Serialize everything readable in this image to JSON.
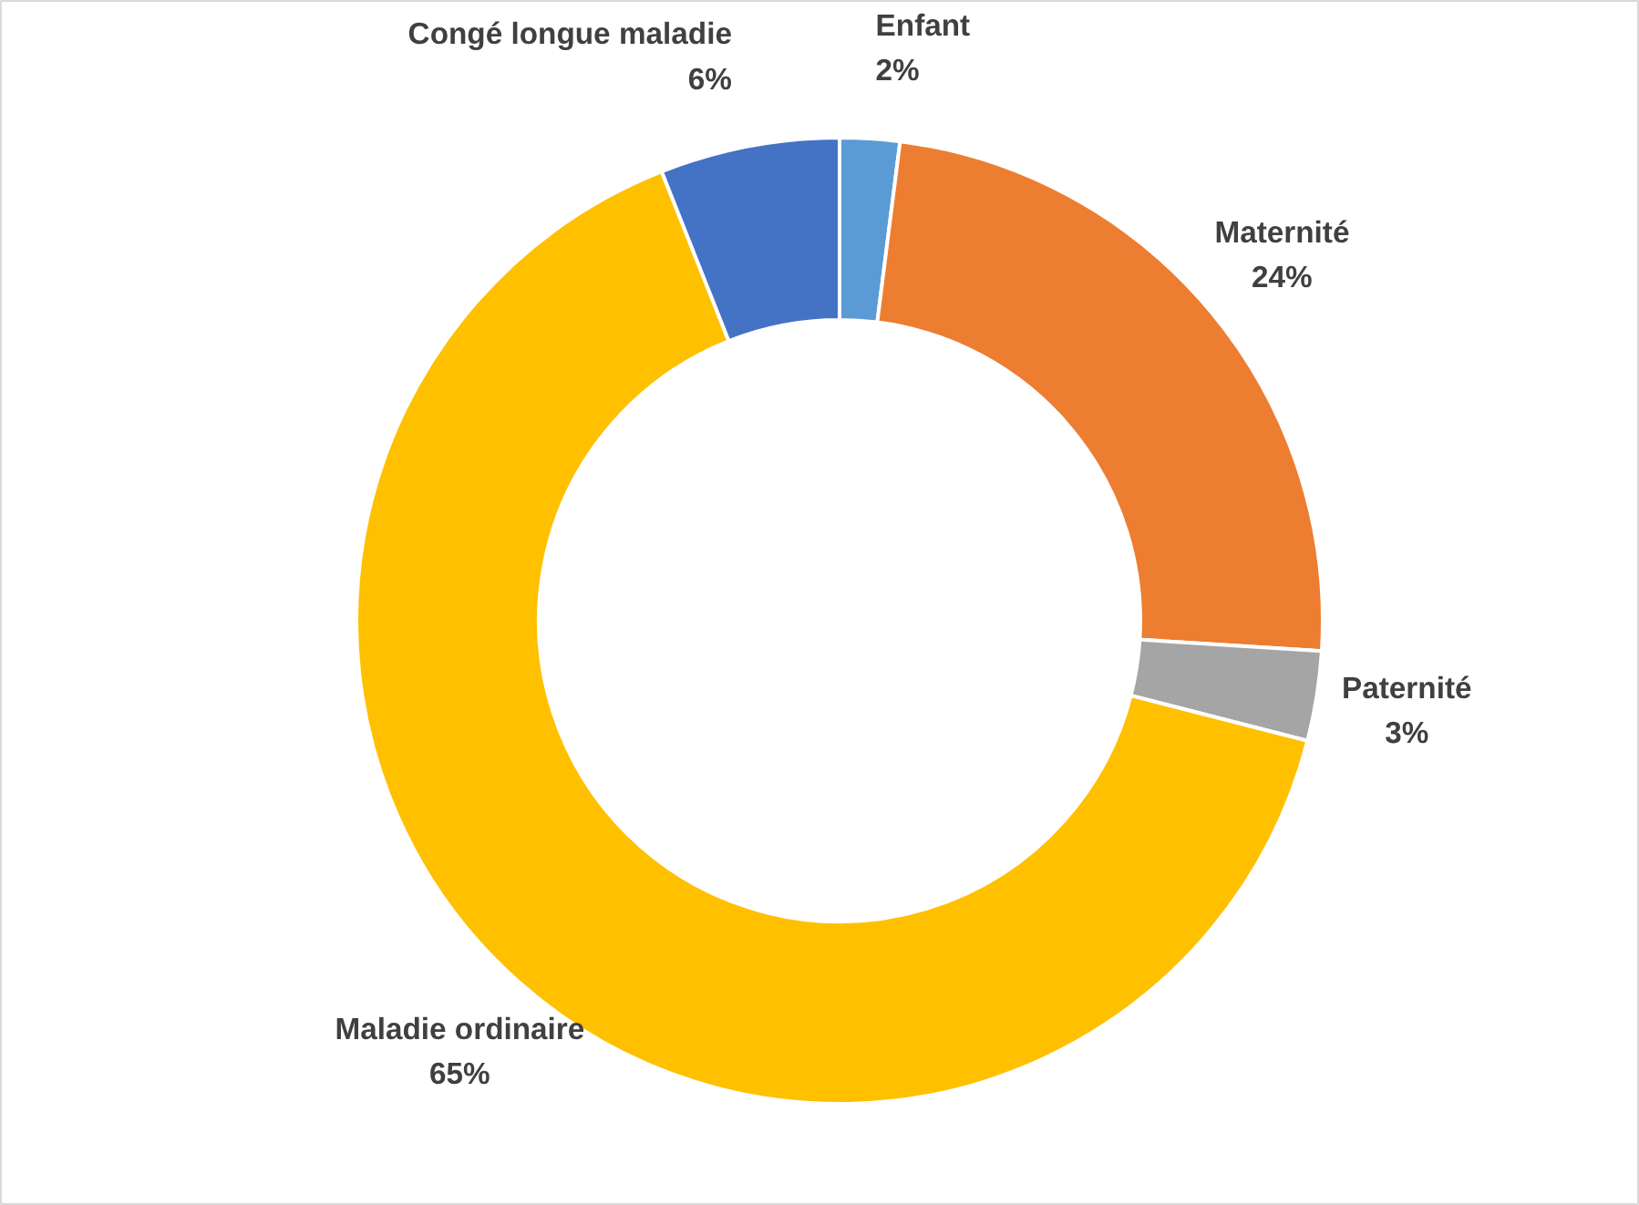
{
  "chart_data": {
    "type": "donut",
    "categories": [
      "Enfant",
      "Maternité",
      "Paternité",
      "Maladie ordinaire",
      "Congé longue maladie"
    ],
    "values": [
      2,
      24,
      3,
      65,
      6
    ],
    "colors": [
      "#5b9bd5",
      "#ed7d31",
      "#a5a5a5",
      "#ffc000",
      "#4472c4"
    ],
    "value_labels": [
      "2%",
      "24%",
      "3%",
      "65%",
      "6%"
    ]
  }
}
